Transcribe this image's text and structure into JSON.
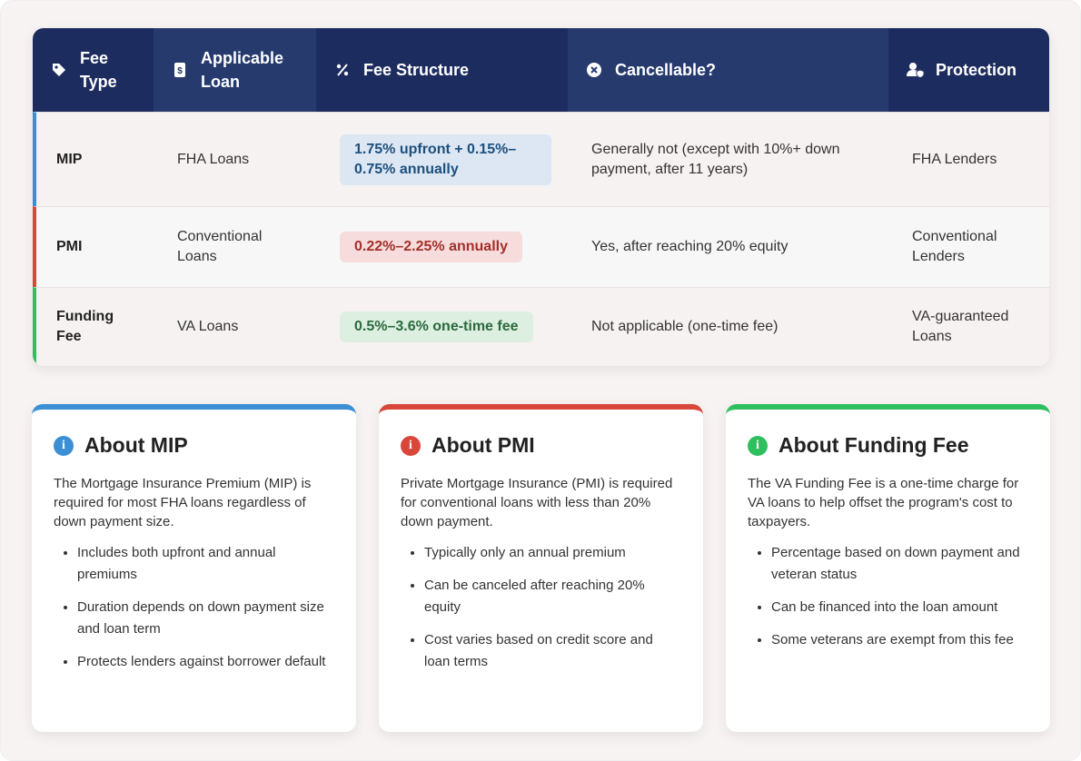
{
  "table": {
    "headers": [
      "Fee Type",
      "Applicable Loan",
      "Fee Structure",
      "Cancellable?",
      "Protection"
    ],
    "rows": [
      [
        "MIP",
        "FHA Loans",
        "1.75% upfront + 0.15%–0.75% annually",
        "Generally not (except with 10%+ down payment, after 11 years)",
        "FHA Lenders"
      ],
      [
        "PMI",
        "Conventional Loans",
        "0.22%–2.25% annually",
        "Yes, after reaching 20% equity",
        "Conventional Lenders"
      ],
      [
        "Funding Fee",
        "VA Loans",
        "0.5%–3.6% one-time fee",
        "Not applicable (one-time fee)",
        "VA-guaranteed Loans"
      ]
    ]
  },
  "cards": [
    {
      "title": "About MIP",
      "intro": "The Mortgage Insurance Premium (MIP) is required for most FHA loans regardless of down payment size.",
      "items": [
        "Includes both upfront and annual premiums",
        "Duration depends on down payment size and loan term",
        "Protects lenders against borrower default"
      ]
    },
    {
      "title": "About PMI",
      "intro": "Private Mortgage Insurance (PMI) is required for conventional loans with less than 20% down payment.",
      "items": [
        "Typically only an annual premium",
        "Can be canceled after reaching 20% equity",
        "Cost varies based on credit score and loan terms"
      ]
    },
    {
      "title": "About Funding Fee",
      "intro": "The VA Funding Fee is a one-time charge for VA loans to help offset the program's cost to taxpayers.",
      "items": [
        "Percentage based on down payment and veteran status",
        "Can be financed into the loan amount",
        "Some veterans are exempt from this fee"
      ]
    }
  ]
}
